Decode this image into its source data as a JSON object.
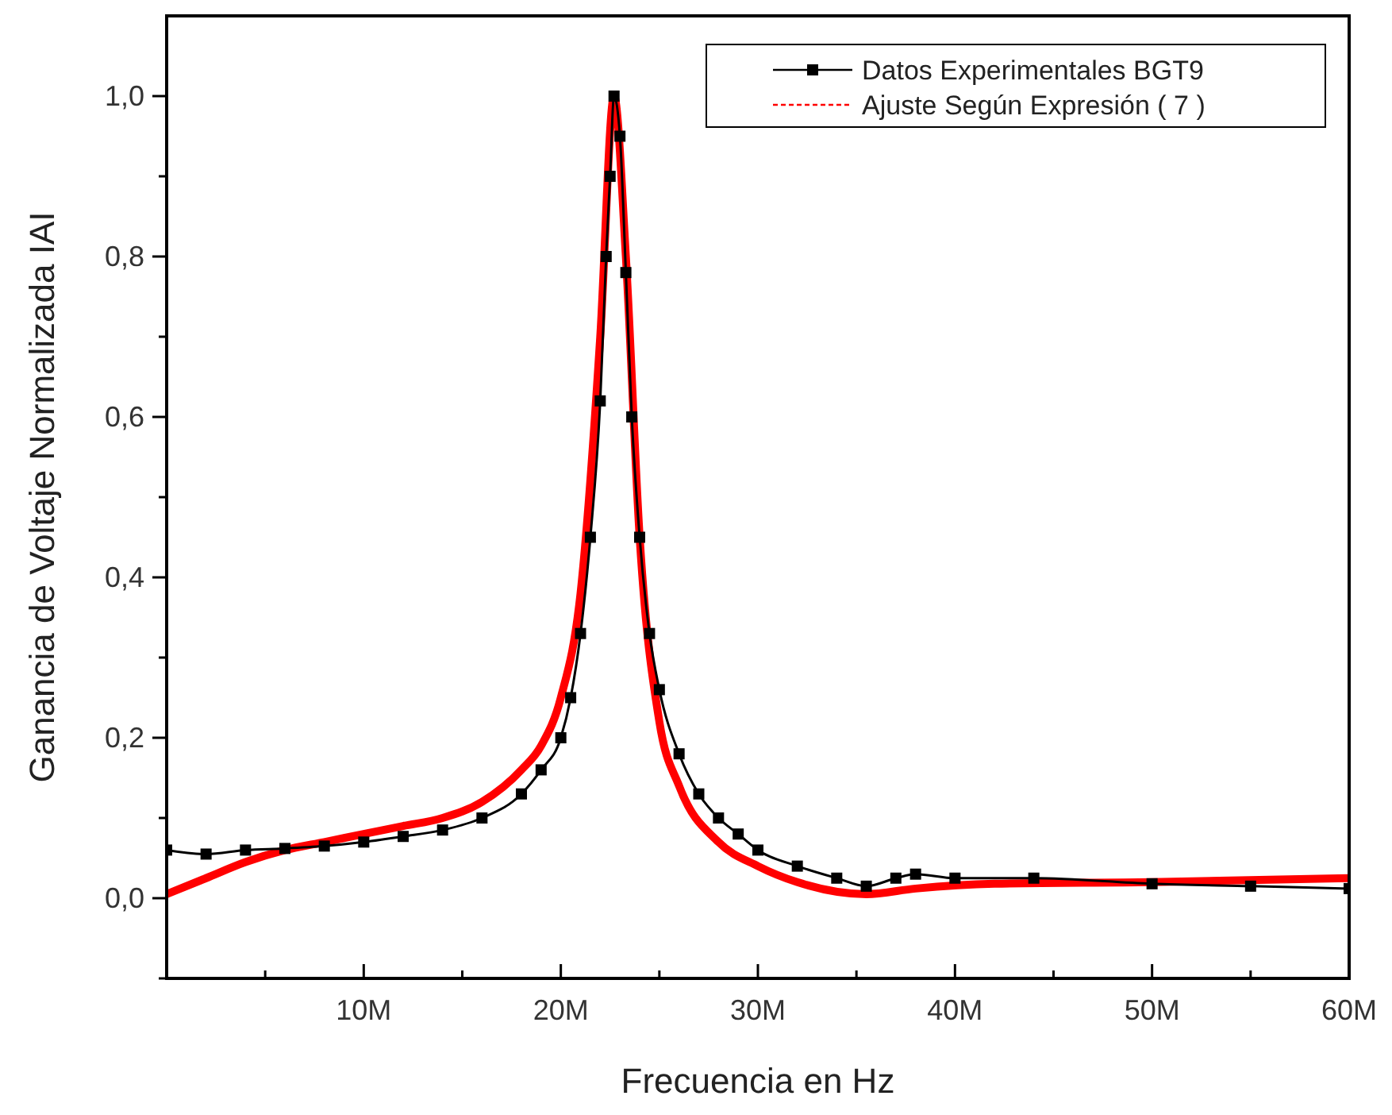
{
  "chart_data": {
    "type": "line",
    "xlabel": "Frecuencia en Hz",
    "ylabel": "Ganancia de Voltaje Normalizada IAI",
    "xlim": [
      0,
      60000000
    ],
    "ylim": [
      -0.1,
      1.1
    ],
    "xticks": [
      {
        "value": 5000000,
        "label": null
      },
      {
        "value": 10000000,
        "label": "10M"
      },
      {
        "value": 15000000,
        "label": null
      },
      {
        "value": 20000000,
        "label": "20M"
      },
      {
        "value": 25000000,
        "label": null
      },
      {
        "value": 30000000,
        "label": "30M"
      },
      {
        "value": 35000000,
        "label": null
      },
      {
        "value": 40000000,
        "label": "40M"
      },
      {
        "value": 45000000,
        "label": null
      },
      {
        "value": 50000000,
        "label": "50M"
      },
      {
        "value": 55000000,
        "label": null
      },
      {
        "value": 60000000,
        "label": "60M"
      }
    ],
    "yticks": [
      {
        "value": -0.1,
        "label": null
      },
      {
        "value": 0,
        "label": "0,0"
      },
      {
        "value": 0.1,
        "label": null
      },
      {
        "value": 0.2,
        "label": "0,2"
      },
      {
        "value": 0.3,
        "label": null
      },
      {
        "value": 0.4,
        "label": "0,4"
      },
      {
        "value": 0.5,
        "label": null
      },
      {
        "value": 0.6,
        "label": "0,6"
      },
      {
        "value": 0.7,
        "label": null
      },
      {
        "value": 0.8,
        "label": "0,8"
      },
      {
        "value": 0.9,
        "label": null
      },
      {
        "value": 1.0,
        "label": "1,0"
      }
    ],
    "grid": false,
    "legend": "top right",
    "series": [
      {
        "name": "Datos Experimentales BGT9",
        "color": "#000000",
        "marker": "square",
        "x": [
          0,
          2000000,
          4000000,
          6000000,
          8000000,
          10000000,
          12000000,
          14000000,
          16000000,
          18000000,
          19000000,
          20000000,
          20500000,
          21000000,
          21500000,
          22000000,
          22300000,
          22500000,
          22700000,
          23000000,
          23300000,
          23600000,
          24000000,
          24500000,
          25000000,
          26000000,
          27000000,
          28000000,
          29000000,
          30000000,
          32000000,
          34000000,
          35500000,
          37000000,
          38000000,
          40000000,
          44000000,
          50000000,
          55000000,
          60000000
        ],
        "values": [
          0.06,
          0.055,
          0.06,
          0.062,
          0.065,
          0.07,
          0.077,
          0.085,
          0.1,
          0.13,
          0.16,
          0.2,
          0.25,
          0.33,
          0.45,
          0.62,
          0.8,
          0.9,
          1.0,
          0.95,
          0.78,
          0.6,
          0.45,
          0.33,
          0.26,
          0.18,
          0.13,
          0.1,
          0.08,
          0.06,
          0.04,
          0.025,
          0.015,
          0.025,
          0.03,
          0.025,
          0.025,
          0.018,
          0.015,
          0.012
        ]
      },
      {
        "name": "Ajuste Según Expresión ( 7 )",
        "color": "#ff0000",
        "marker": "none",
        "x": [
          0,
          2000000,
          4000000,
          6000000,
          8000000,
          10000000,
          12000000,
          14000000,
          16000000,
          18000000,
          19000000,
          20000000,
          21000000,
          22000000,
          22700000,
          23300000,
          24000000,
          25000000,
          26000000,
          28000000,
          30000000,
          32000000,
          35500000,
          38000000,
          42000000,
          50000000,
          60000000
        ],
        "values": [
          0.005,
          0.025,
          0.045,
          0.06,
          0.07,
          0.08,
          0.09,
          0.1,
          0.12,
          0.16,
          0.19,
          0.25,
          0.38,
          0.7,
          1.0,
          0.8,
          0.45,
          0.22,
          0.14,
          0.07,
          0.04,
          0.02,
          0.005,
          0.012,
          0.018,
          0.02,
          0.025
        ]
      }
    ]
  }
}
